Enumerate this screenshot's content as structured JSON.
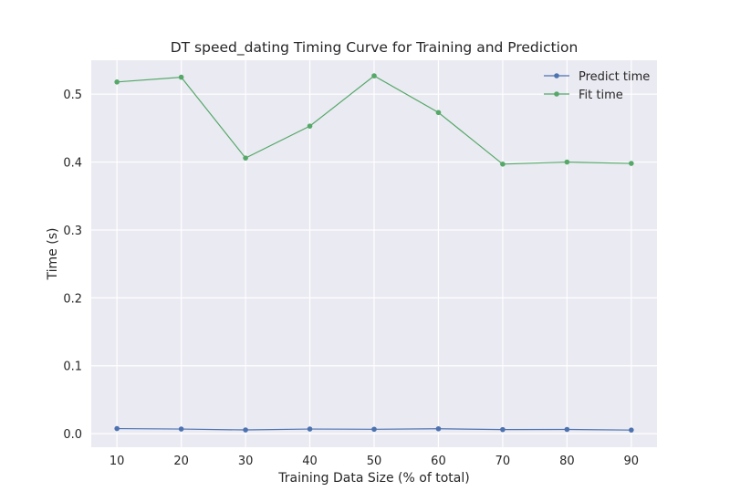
{
  "chart_data": {
    "type": "line",
    "title": "DT speed_dating Timing Curve for Training and Prediction",
    "xlabel": "Training Data Size (% of total)",
    "ylabel": "Time (s)",
    "x": [
      10,
      20,
      30,
      40,
      50,
      60,
      70,
      80,
      90
    ],
    "xlim": [
      6,
      94
    ],
    "ylim": [
      -0.02,
      0.55
    ],
    "xticks": [
      10,
      20,
      30,
      40,
      50,
      60,
      70,
      80,
      90
    ],
    "yticks": [
      0.0,
      0.1,
      0.2,
      0.3,
      0.4,
      0.5
    ],
    "ytick_labels": [
      "0.0",
      "0.1",
      "0.2",
      "0.3",
      "0.4",
      "0.5"
    ],
    "grid": true,
    "legend_position": "top-right",
    "series": [
      {
        "name": "Predict time",
        "color": "#4c72b0",
        "values": [
          0.0075,
          0.0068,
          0.0055,
          0.0068,
          0.0065,
          0.0072,
          0.006,
          0.0062,
          0.0053
        ]
      },
      {
        "name": "Fit time",
        "color": "#55a868",
        "values": [
          0.518,
          0.525,
          0.406,
          0.453,
          0.527,
          0.473,
          0.397,
          0.4,
          0.398
        ]
      }
    ]
  }
}
